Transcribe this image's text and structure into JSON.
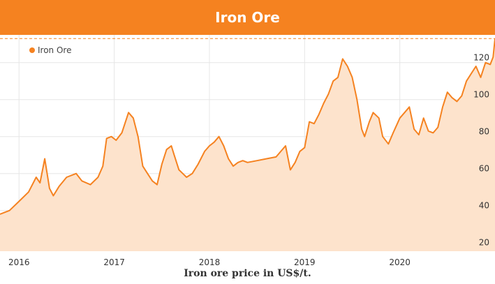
{
  "header": {
    "title": "Iron Ore"
  },
  "caption": "Iron ore price in US$/t.",
  "colors": {
    "accent": "#f58220",
    "area_fill": "#fde3cc",
    "grid": "#e6e6e6"
  },
  "chart_data": {
    "type": "area",
    "title": "Iron Ore",
    "xlabel": "",
    "ylabel": "",
    "ylim": [
      18,
      135
    ],
    "xlim": [
      2015.8,
      2021.0
    ],
    "x_ticks": [
      2016,
      2017,
      2018,
      2019,
      2020
    ],
    "x_tick_labels": [
      "2016",
      "2017",
      "2018",
      "2019",
      "2020"
    ],
    "y_ticks": [
      20,
      40,
      60,
      80,
      100,
      120
    ],
    "y_tick_labels": [
      "20",
      "40",
      "60",
      "80",
      "100",
      "120"
    ],
    "grid": true,
    "reference_line": {
      "value": 133,
      "style": "dashed"
    },
    "legend": {
      "position": "top-left",
      "entries": [
        "Iron Ore"
      ]
    },
    "series": [
      {
        "name": "Iron Ore",
        "color": "#f58220",
        "x": [
          2015.8,
          2015.9,
          2016.0,
          2016.1,
          2016.18,
          2016.22,
          2016.27,
          2016.32,
          2016.36,
          2016.42,
          2016.5,
          2016.6,
          2016.66,
          2016.75,
          2016.83,
          2016.88,
          2016.92,
          2016.97,
          2017.02,
          2017.08,
          2017.15,
          2017.2,
          2017.25,
          2017.3,
          2017.35,
          2017.4,
          2017.45,
          2017.5,
          2017.55,
          2017.6,
          2017.63,
          2017.68,
          2017.72,
          2017.76,
          2017.82,
          2017.88,
          2017.95,
          2018.0,
          2018.05,
          2018.1,
          2018.15,
          2018.2,
          2018.25,
          2018.3,
          2018.35,
          2018.4,
          2018.5,
          2018.6,
          2018.7,
          2018.8,
          2018.85,
          2018.9,
          2018.95,
          2019.0,
          2019.05,
          2019.1,
          2019.15,
          2019.2,
          2019.25,
          2019.3,
          2019.35,
          2019.4,
          2019.45,
          2019.5,
          2019.55,
          2019.6,
          2019.63,
          2019.68,
          2019.72,
          2019.78,
          2019.82,
          2019.88,
          2019.93,
          2020.0,
          2020.05,
          2020.1,
          2020.15,
          2020.2,
          2020.25,
          2020.3,
          2020.35,
          2020.4,
          2020.45,
          2020.5,
          2020.55,
          2020.6,
          2020.65,
          2020.7,
          2020.75,
          2020.8,
          2020.85,
          2020.9,
          2020.95,
          2020.98,
          2021.0
        ],
        "values": [
          38,
          40,
          45,
          50,
          58,
          55,
          68,
          52,
          48,
          53,
          58,
          60,
          56,
          54,
          58,
          64,
          79,
          80,
          78,
          82,
          93,
          90,
          80,
          64,
          60,
          56,
          54,
          65,
          73,
          75,
          70,
          62,
          60,
          58,
          60,
          65,
          72,
          75,
          77,
          80,
          75,
          68,
          64,
          66,
          67,
          66,
          67,
          68,
          69,
          75,
          62,
          66,
          72,
          74,
          88,
          87,
          92,
          98,
          103,
          110,
          112,
          122,
          118,
          112,
          100,
          84,
          80,
          88,
          93,
          90,
          80,
          76,
          82,
          90,
          93,
          96,
          84,
          81,
          90,
          83,
          82,
          85,
          96,
          104,
          101,
          99,
          102,
          110,
          114,
          118,
          112,
          120,
          119,
          123,
          133
        ]
      }
    ]
  }
}
